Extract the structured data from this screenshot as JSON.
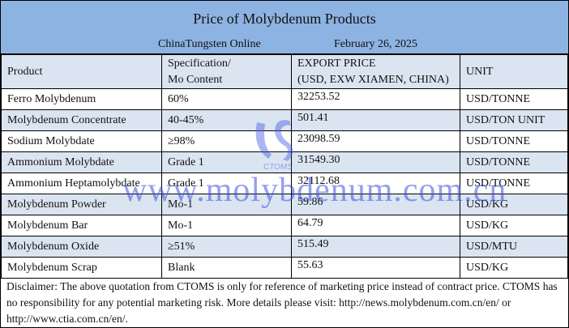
{
  "title": "Price of Molybdenum Products",
  "source": "ChinaTungsten Online",
  "date": "February 26, 2025",
  "headers": {
    "product": "Product",
    "spec_line1": "Specification/",
    "spec_line2": "Mo Content",
    "price_line1": "EXPORT PRICE",
    "price_line2": "(USD, EXW XIAMEN, CHINA)",
    "unit": "UNIT"
  },
  "rows": [
    {
      "product": "Ferro Molybdenum",
      "spec": "60%",
      "price": "32253.52",
      "unit": "USD/TONNE"
    },
    {
      "product": "Molybdenum Concentrate",
      "spec": "40-45%",
      "price": "501.41",
      "unit": "USD/TON UNIT"
    },
    {
      "product": "Sodium Molybdate",
      "spec": "≥98%",
      "price": "23098.59",
      "unit": "USD/TONNE"
    },
    {
      "product": "Ammonium Molybdate",
      "spec": "Grade 1",
      "price": "31549.30",
      "unit": "USD/TONNE"
    },
    {
      "product": "Ammonium Heptamolybdate",
      "spec": "Grade 1",
      "price": "32112.68",
      "unit": "USD/TONNE"
    },
    {
      "product": "Molybdenum Powder",
      "spec": "Mo-1",
      "price": "59.86",
      "unit": "USD/KG"
    },
    {
      "product": "Molybdenum Bar",
      "spec": "Mo-1",
      "price": "64.79",
      "unit": "USD/KG"
    },
    {
      "product": "Molybdenum Oxide",
      "spec": "≥51%",
      "price": "515.49",
      "unit": "USD/MTU"
    },
    {
      "product": "Molybdenum Scrap",
      "spec": "Blank",
      "price": "55.63",
      "unit": "USD/KG"
    }
  ],
  "disclaimer": "Disclaimer: The above quotation from CTOMS is only for reference of marketing price instead of contract price. CTOMS has no responsibility for any potential marketing risk. More details please visit: http://news.molybdenum.com.cn/en/ or http://www.ctia.com.cn/en/.",
  "watermark": "www.molybdenum.com.cn",
  "logo_text": "CTOMS",
  "colors": {
    "banner": "#8db3e2",
    "row_alt": "#dbe5f1",
    "watermark": "#3c50dc"
  }
}
